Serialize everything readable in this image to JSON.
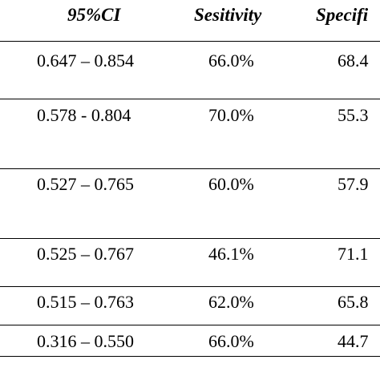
{
  "table": {
    "headers": {
      "ci": "95%CI",
      "sensitivity": "Sesitivity",
      "specificity": "Specifi"
    },
    "rows": [
      {
        "ci": "0.647 – 0.854",
        "sensitivity": "66.0%",
        "specificity": "68.4"
      },
      {
        "ci": "0.578 - 0.804",
        "sensitivity": "70.0%",
        "specificity": "55.3"
      },
      {
        "ci": "0.527 – 0.765",
        "sensitivity": "60.0%",
        "specificity": "57.9"
      },
      {
        "ci": "0.525 – 0.767",
        "sensitivity": "46.1%",
        "specificity": "71.1"
      },
      {
        "ci": "0.515 – 0.763",
        "sensitivity": "62.0%",
        "specificity": "65.8"
      },
      {
        "ci": "0.316 – 0.550",
        "sensitivity": "66.0%",
        "specificity": "44.7"
      }
    ]
  }
}
